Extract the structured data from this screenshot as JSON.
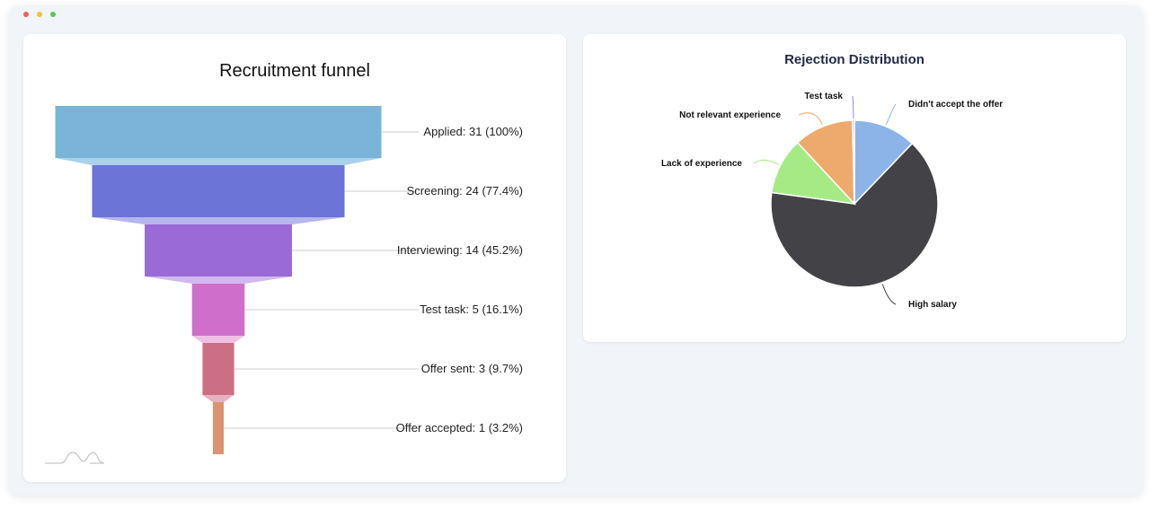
{
  "window": {
    "controls": [
      {
        "name": "close",
        "color": "#f25f58"
      },
      {
        "name": "minimize",
        "color": "#f4bf3b"
      },
      {
        "name": "zoom",
        "color": "#5cc84e"
      }
    ]
  },
  "chart_data": [
    {
      "type": "funnel",
      "title": "Recruitment funnel",
      "categories": [
        "Applied",
        "Screening",
        "Interviewing",
        "Test task",
        "Offer sent",
        "Offer accepted"
      ],
      "values": [
        31,
        24,
        14,
        5,
        3,
        1
      ],
      "labels": [
        "Applied: 31 (100%)",
        "Screening: 24 (77.4%)",
        "Interviewing: 14 (45.2%)",
        "Test task: 5 (16.1%)",
        "Offer sent: 3 (9.7%)",
        "Offer accepted: 1 (3.2%)"
      ],
      "colors": [
        "#7ab4d8",
        "#6c74d8",
        "#9a6ad6",
        "#d06ecb",
        "#cc6e85",
        "#d99470"
      ],
      "connector_colors": [
        "#a9d1ea",
        "#b6b6ec",
        "#d1b8ee",
        "#f0bfe4",
        "#e9b0bd"
      ]
    },
    {
      "type": "pie",
      "title": "Rejection Distribution",
      "slices": [
        {
          "label": "Didn't accept the offer",
          "value": 1,
          "color": "#8db4e8"
        },
        {
          "label": "High salary",
          "value": 5.35,
          "color": "#434347"
        },
        {
          "label": "Lack of experience",
          "value": 0.9,
          "color": "#a6ea86"
        },
        {
          "label": "Not relevant experience",
          "value": 0.95,
          "color": "#edaa6c"
        },
        {
          "label": "Test task",
          "value": 0.03,
          "color": "#8e8be8"
        }
      ]
    }
  ]
}
